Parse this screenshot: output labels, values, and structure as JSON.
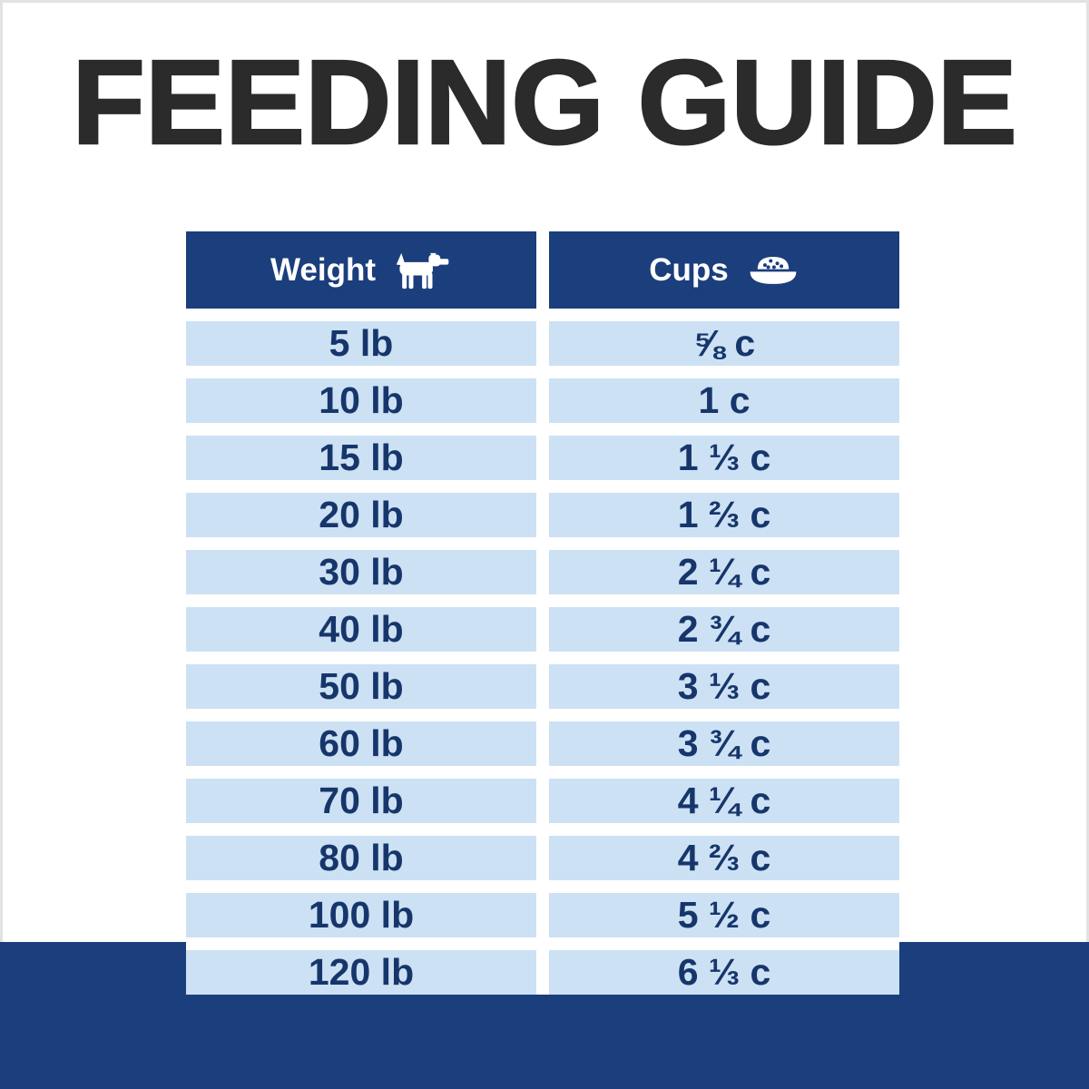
{
  "title": "FEEDING GUIDE",
  "colors": {
    "navy": "#1b3e7c",
    "row_blue": "#cde1f4",
    "row_text": "#16366b",
    "title_color": "#2b2b2b",
    "background": "#ffffff"
  },
  "table": {
    "columns": [
      {
        "label": "Weight",
        "icon": "dog-icon"
      },
      {
        "label": "Cups",
        "icon": "food-bowl-icon"
      }
    ],
    "rows": [
      {
        "weight": "5 lb",
        "cups": "⅝ c"
      },
      {
        "weight": "10 lb",
        "cups": "1 c"
      },
      {
        "weight": "15 lb",
        "cups": "1 ⅓ c"
      },
      {
        "weight": "20 lb",
        "cups": "1 ⅔ c"
      },
      {
        "weight": "30 lb",
        "cups": "2 ¼ c"
      },
      {
        "weight": "40 lb",
        "cups": "2 ¾ c"
      },
      {
        "weight": "50 lb",
        "cups": "3 ⅓ c"
      },
      {
        "weight": "60 lb",
        "cups": "3 ¾ c"
      },
      {
        "weight": "70 lb",
        "cups": "4 ¼ c"
      },
      {
        "weight": "80 lb",
        "cups": "4 ⅔ c"
      },
      {
        "weight": "100 lb",
        "cups": "5 ½ c"
      },
      {
        "weight": "120 lb",
        "cups": "6 ⅓ c"
      }
    ]
  },
  "chart_data": {
    "type": "table",
    "title": "FEEDING GUIDE",
    "columns": [
      "Weight",
      "Cups"
    ],
    "rows": [
      [
        "5 lb",
        "5/8 c"
      ],
      [
        "10 lb",
        "1 c"
      ],
      [
        "15 lb",
        "1 1/3 c"
      ],
      [
        "20 lb",
        "1 2/3 c"
      ],
      [
        "30 lb",
        "2 1/4 c"
      ],
      [
        "40 lb",
        "2 3/4 c"
      ],
      [
        "50 lb",
        "3 1/3 c"
      ],
      [
        "60 lb",
        "3 3/4 c"
      ],
      [
        "70 lb",
        "4 1/4 c"
      ],
      [
        "80 lb",
        "4 2/3 c"
      ],
      [
        "100 lb",
        "5 1/2 c"
      ],
      [
        "120 lb",
        "6 1/3 c"
      ]
    ]
  }
}
